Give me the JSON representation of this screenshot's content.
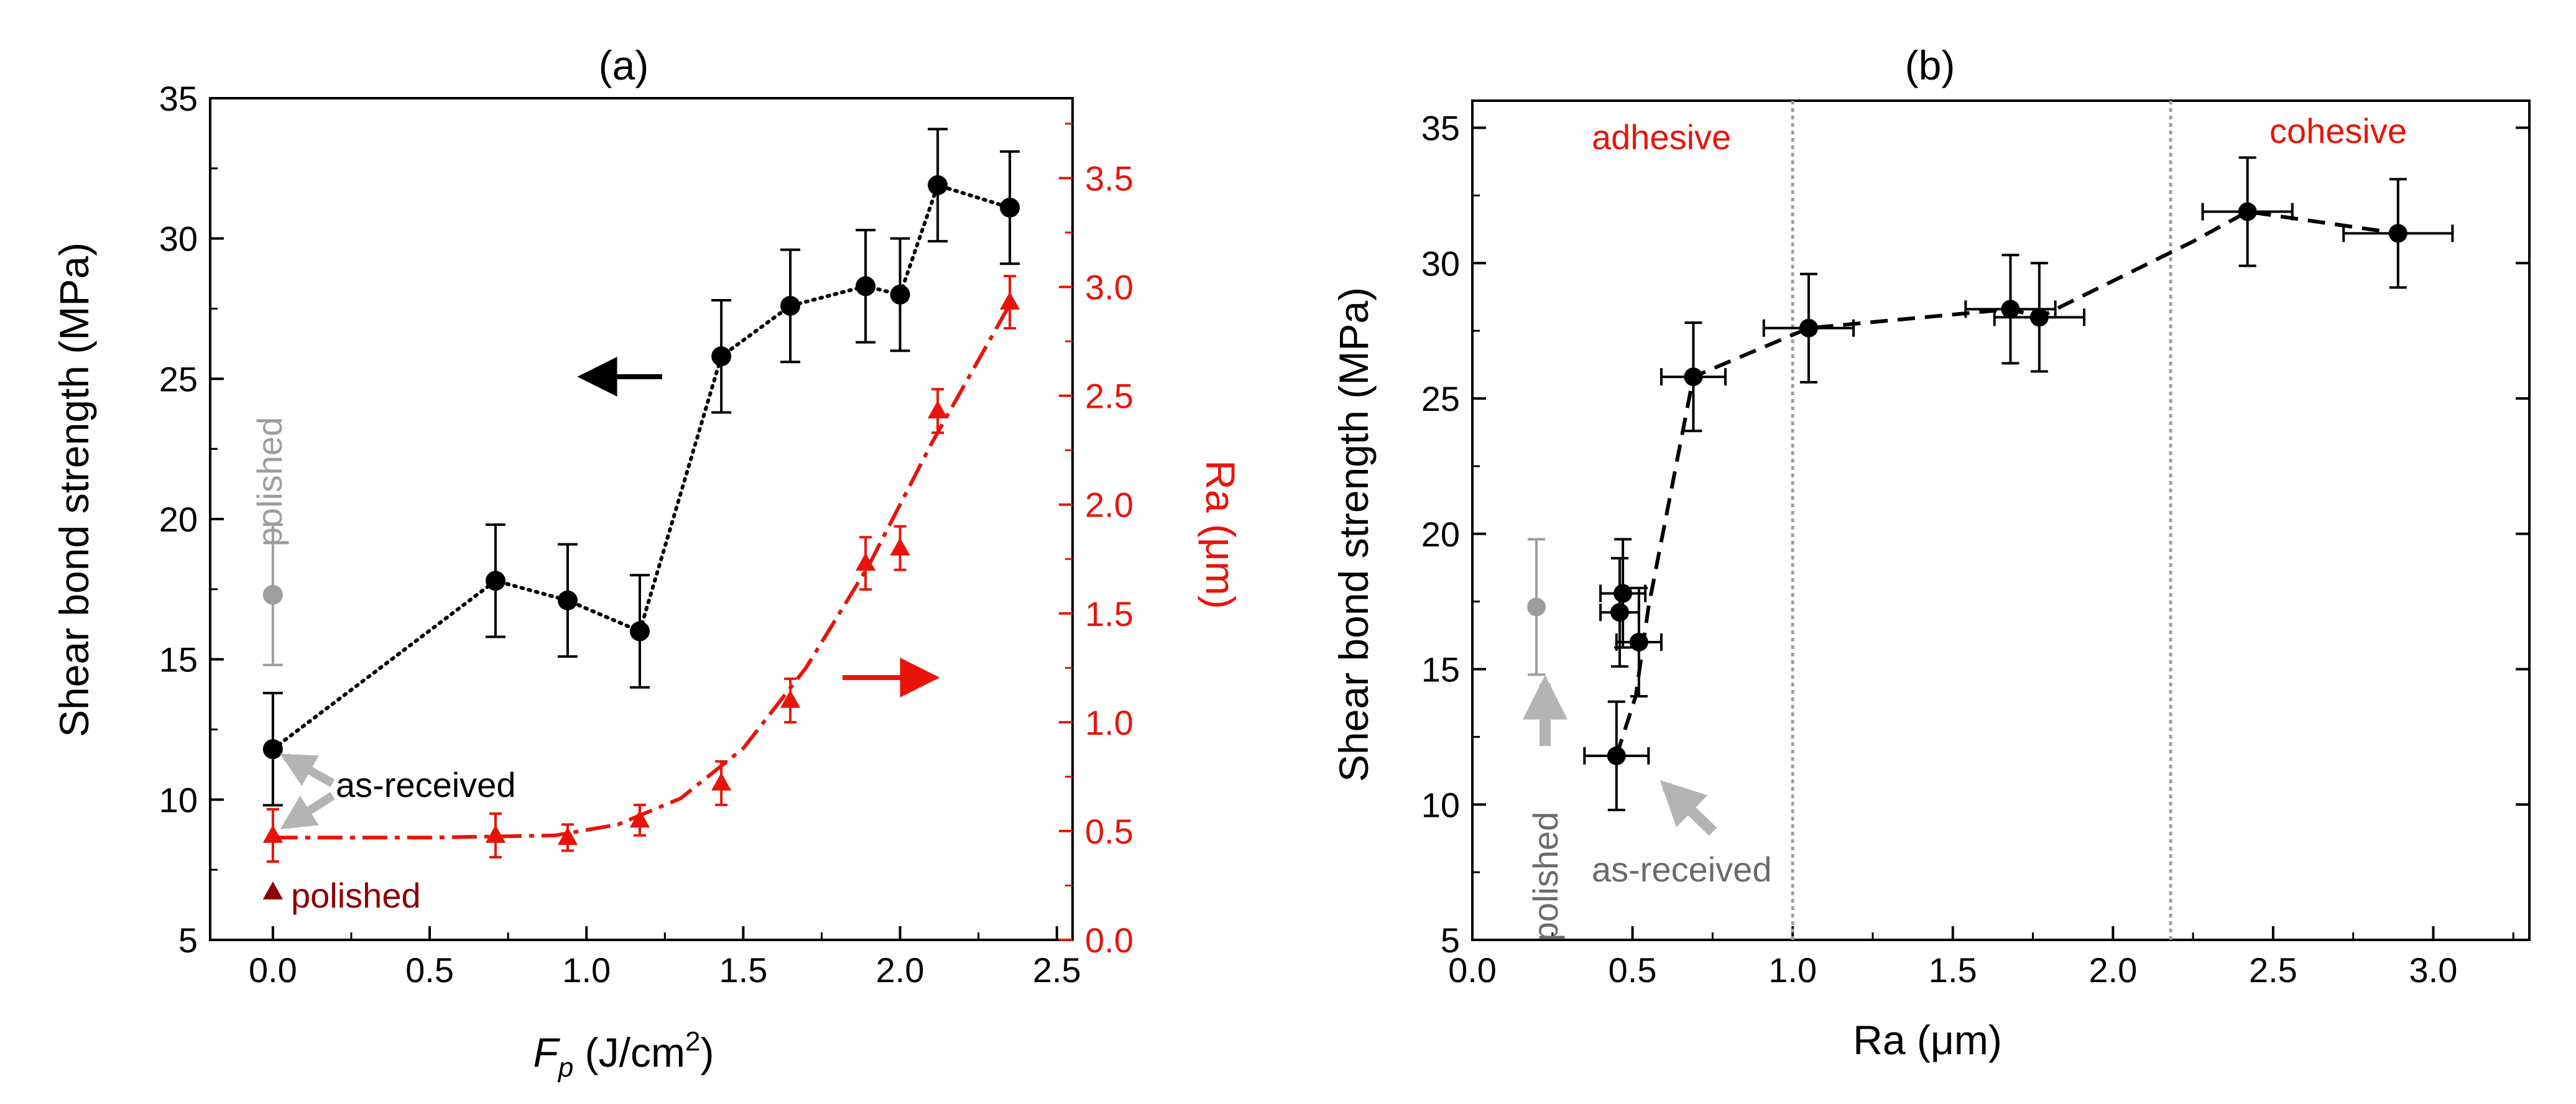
{
  "chart_data": [
    {
      "panel": "a",
      "type": "line",
      "title": "(a)",
      "xlabel_main": "F",
      "xlabel_sub": "p",
      "xlabel_unit": " (J/cm",
      "xlabel_sup": "2",
      "xlabel_close": ")",
      "ylabel": "Shear bond strength (MPa)",
      "y2label": "Ra (μm)",
      "xlim": [
        -0.2,
        2.55
      ],
      "ylim": [
        5,
        35
      ],
      "y2lim": [
        0.0,
        3.867
      ],
      "xticks": [
        "0.0",
        "0.5",
        "1.0",
        "1.5",
        "2.0",
        "2.5"
      ],
      "yticks": [
        "5",
        "10",
        "15",
        "20",
        "25",
        "30",
        "35"
      ],
      "y2ticks": [
        "0.0",
        "0.5",
        "1.0",
        "1.5",
        "2.0",
        "2.5",
        "3.0",
        "3.5"
      ],
      "series": [
        {
          "name": "Shear bond strength",
          "axis": "left",
          "color": "#000000",
          "marker": "circle",
          "line": "dotted",
          "x": [
            0.0,
            0.71,
            0.94,
            1.17,
            1.43,
            1.65,
            1.89,
            2.0,
            2.12,
            2.35
          ],
          "y": [
            11.8,
            17.8,
            17.1,
            16.0,
            25.8,
            27.6,
            28.3,
            28.0,
            31.9,
            31.1
          ],
          "err": [
            2.0,
            2.0,
            2.0,
            2.0,
            2.0,
            2.0,
            2.0,
            2.0,
            2.0,
            2.0
          ]
        },
        {
          "name": "Ra",
          "axis": "right",
          "color": "#e8140a",
          "marker": "triangle",
          "line": "dashdot",
          "x": [
            0.0,
            0.71,
            0.94,
            1.17,
            1.43,
            1.65,
            1.89,
            2.0,
            2.12,
            2.35
          ],
          "y": [
            0.48,
            0.48,
            0.47,
            0.55,
            0.72,
            1.1,
            1.73,
            1.8,
            2.43,
            2.93
          ],
          "err": [
            0.12,
            0.1,
            0.06,
            0.07,
            0.1,
            0.1,
            0.12,
            0.1,
            0.1,
            0.12
          ]
        },
        {
          "name": "polished shear",
          "axis": "left",
          "color": "#9e9e9e",
          "marker": "circle",
          "x": [
            0.0
          ],
          "y": [
            17.3
          ],
          "err": [
            2.5
          ]
        },
        {
          "name": "polished Ra",
          "axis": "right",
          "color": "#8b0000",
          "marker": "triangle",
          "x": [
            0.0
          ],
          "y": [
            0.22
          ],
          "err": [
            0.0
          ]
        }
      ],
      "fit_line_ra": {
        "x": [
          0.0,
          0.5,
          0.9,
          1.1,
          1.3,
          1.5,
          1.7,
          1.9,
          2.1,
          2.35
        ],
        "y": [
          0.47,
          0.47,
          0.48,
          0.53,
          0.65,
          0.88,
          1.25,
          1.72,
          2.28,
          2.92
        ]
      },
      "annotations": {
        "polished_vertical": "polished",
        "as_received": "as-received",
        "polished_bottom": "polished"
      }
    },
    {
      "panel": "b",
      "type": "scatter",
      "title": "(b)",
      "xlabel": "Ra (μm)",
      "ylabel": "Shear bond strength (MPa)",
      "xlim": [
        0.0,
        3.3
      ],
      "ylim": [
        5,
        36
      ],
      "xticks": [
        "0.0",
        "0.5",
        "1.0",
        "1.5",
        "2.0",
        "2.5",
        "3.0"
      ],
      "yticks": [
        "5",
        "10",
        "15",
        "20",
        "25",
        "30",
        "35"
      ],
      "vlines": [
        1.0,
        2.18
      ],
      "series": [
        {
          "name": "Shear vs Ra",
          "color": "#000000",
          "marker": "circle",
          "line": "dashed",
          "x": [
            0.45,
            0.47,
            0.46,
            0.52,
            0.69,
            1.05,
            1.68,
            1.77,
            2.42,
            2.89
          ],
          "y": [
            11.8,
            17.8,
            17.1,
            16.0,
            25.8,
            27.6,
            28.3,
            28.0,
            31.9,
            31.1
          ],
          "xerr": [
            0.1,
            0.07,
            0.06,
            0.07,
            0.1,
            0.14,
            0.14,
            0.14,
            0.14,
            0.17
          ],
          "yerr": [
            2.0,
            2.0,
            2.0,
            2.0,
            2.0,
            2.0,
            2.0,
            2.0,
            2.0,
            2.0
          ]
        },
        {
          "name": "polished",
          "color": "#9e9e9e",
          "marker": "circle",
          "x": [
            0.2
          ],
          "y": [
            17.3
          ],
          "xerr": [
            0.0
          ],
          "yerr": [
            2.5
          ]
        }
      ],
      "dash_path": {
        "x": [
          0.45,
          0.51,
          0.55,
          0.69,
          1.05,
          1.68,
          1.77,
          2.25,
          2.42,
          2.89
        ],
        "y": [
          11.8,
          14.0,
          17.3,
          25.8,
          27.6,
          28.3,
          28.0,
          30.8,
          31.9,
          31.1
        ]
      },
      "annotations": {
        "adhesive": "adhesive",
        "cohesive": "cohesive",
        "polished": "polished",
        "as_received": "as-received"
      }
    }
  ],
  "colors": {
    "black": "#000000",
    "red": "#e8140a",
    "dark_red": "#8b0000",
    "gray_marker": "#9e9e9e",
    "gray_arrow": "#b4b4b4",
    "gray_text": "#6b6b6b"
  }
}
